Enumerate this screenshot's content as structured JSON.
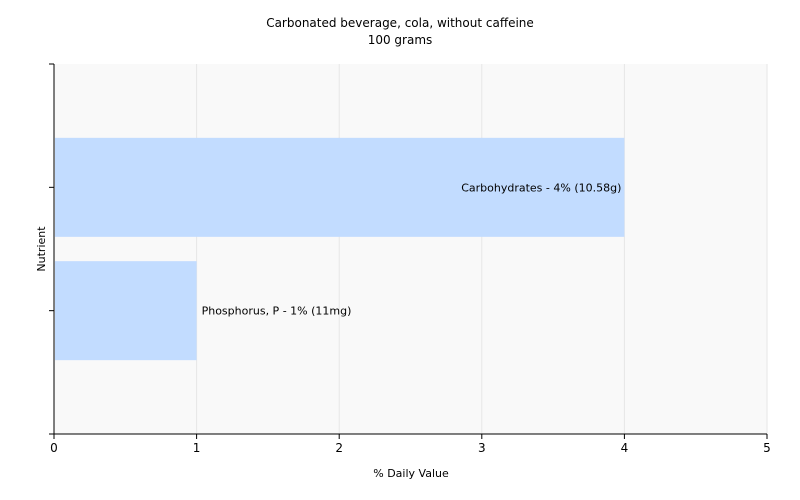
{
  "chart_data": {
    "type": "bar",
    "orientation": "horizontal",
    "title": "Carbonated beverage, cola, without caffeine",
    "subtitle": "100 grams",
    "xlabel": "% Daily Value",
    "ylabel": "Nutrient",
    "xlim": [
      0,
      5
    ],
    "xticks": [
      "0",
      "1",
      "2",
      "3",
      "4",
      "5"
    ],
    "grid": true,
    "bars": [
      {
        "label": "Carbohydrates - 4% (10.58g)",
        "value": 4
      },
      {
        "label": "Phosphorus, P - 1% (11mg)",
        "value": 1
      }
    ],
    "colors": {
      "bar": "#c2dcff",
      "grid": "#e6e6e6",
      "plot_bg": "#f9f9f9",
      "axis": "#000000"
    }
  }
}
